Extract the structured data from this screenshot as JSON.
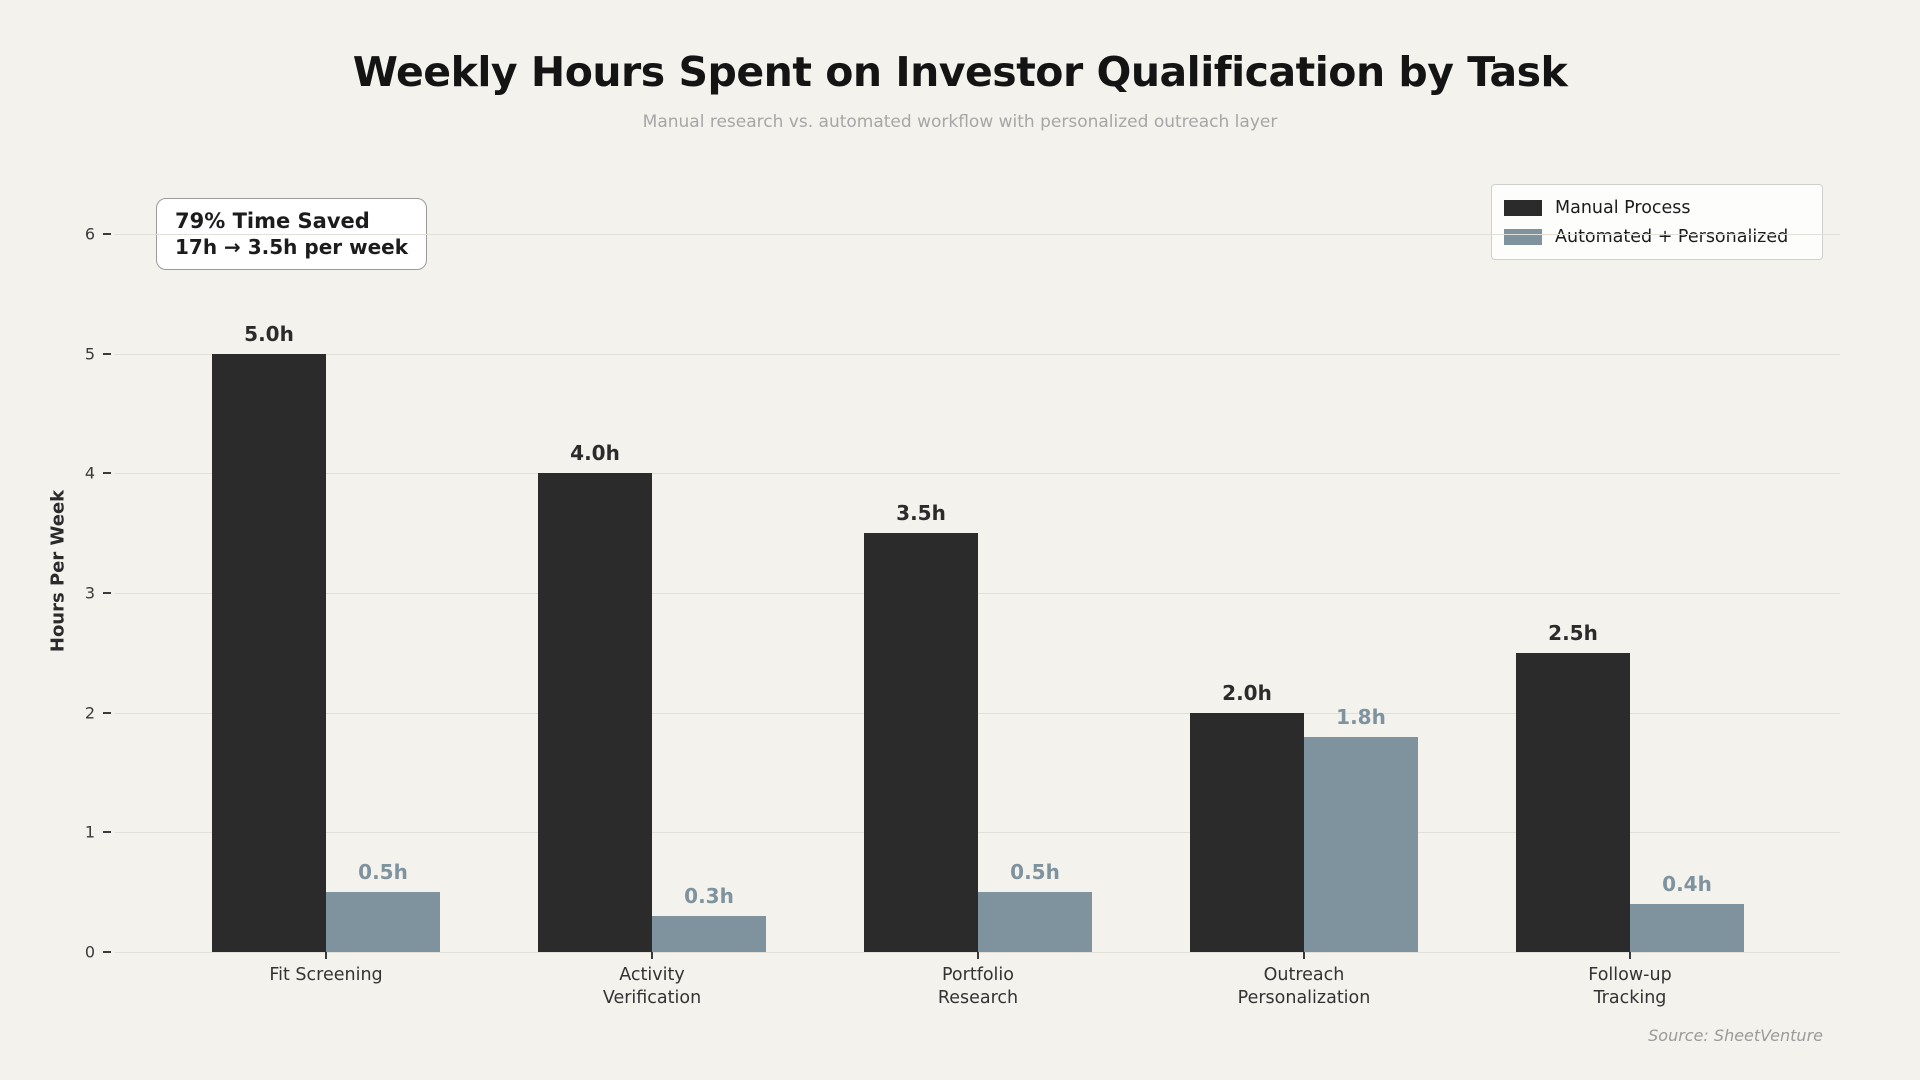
{
  "page": {
    "background": "#f4f2ed"
  },
  "title": "Weekly Hours Spent on Investor Qualification by Task",
  "subtitle": "Manual research vs. automated workflow with personalized outreach layer",
  "annotation": {
    "line1": "79% Time Saved",
    "line2": "17h → 3.5h per week"
  },
  "source": "Source: SheetVenture",
  "chart_data": {
    "type": "bar",
    "title": "Weekly Hours Spent on Investor Qualification by Task",
    "subtitle": "Manual research vs. automated workflow with personalized outreach layer",
    "ylabel": "Hours Per Week",
    "xlabel": "",
    "ylim": [
      0,
      6.36
    ],
    "yticks": [
      0,
      1,
      2,
      3,
      4,
      5,
      6
    ],
    "grid": true,
    "legend_position": "upper right",
    "categories": [
      "Fit Screening",
      "Activity\nVerification",
      "Portfolio\nResearch",
      "Outreach\nPersonalization",
      "Follow-up\nTracking"
    ],
    "series": [
      {
        "name": "Manual Process",
        "color": "#2b2b2b",
        "values": [
          5.0,
          4.0,
          3.5,
          2.0,
          2.5
        ],
        "labels": [
          "5.0h",
          "4.0h",
          "3.5h",
          "2.0h",
          "2.5h"
        ]
      },
      {
        "name": "Automated + Personalized",
        "color": "#7e939e",
        "values": [
          0.5,
          0.3,
          0.5,
          1.8,
          0.4
        ],
        "labels": [
          "0.5h",
          "0.3h",
          "0.5h",
          "1.8h",
          "0.4h"
        ]
      }
    ]
  }
}
